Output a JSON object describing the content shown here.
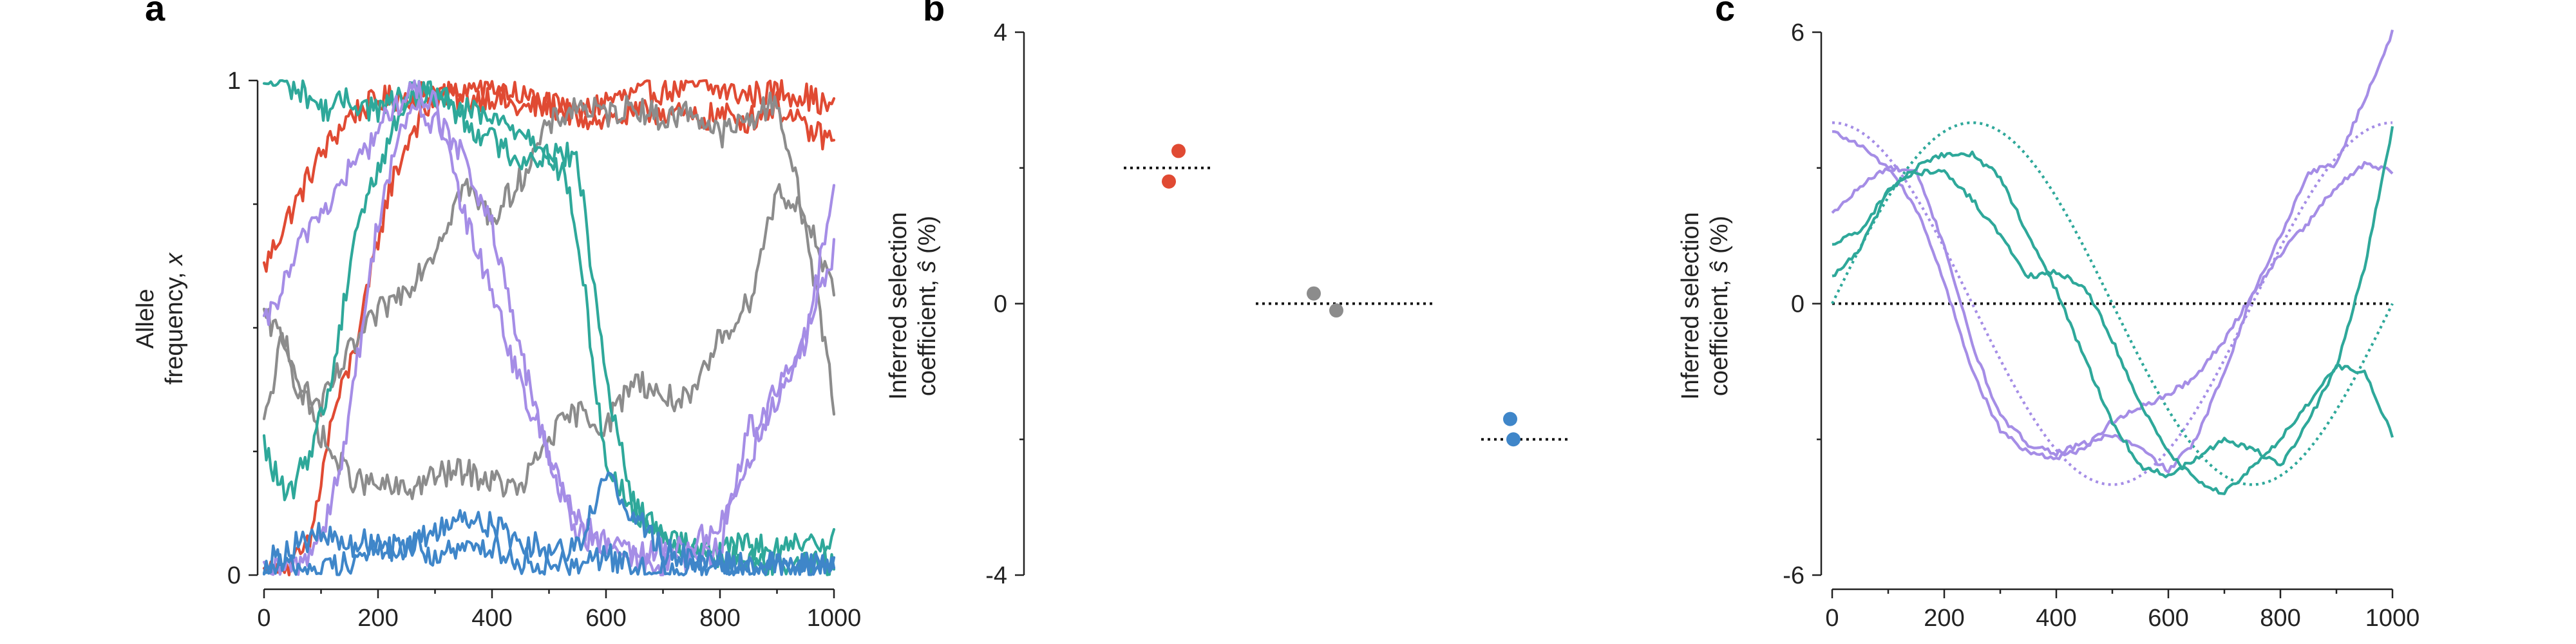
{
  "figure": {
    "panels": {
      "a": {
        "letter": "a",
        "ylabel_line1": "Allele",
        "ylabel_line2": "frequency, ",
        "ylabel_var": "x"
      },
      "b": {
        "letter": "b",
        "ylabel_line1": "Inferred selection",
        "ylabel_line2": "coefficient, ",
        "ylabel_var": "ŝ",
        "ylabel_unit": " (%)"
      },
      "c": {
        "letter": "c",
        "ylabel_line1": "Inferred selection",
        "ylabel_line2": "coefficient, ",
        "ylabel_var": "ŝ",
        "ylabel_unit": " (%)"
      }
    }
  },
  "chart_data": [
    {
      "panel": "a",
      "type": "line",
      "xlabel": "",
      "ylabel": "Allele frequency, x",
      "xlim": [
        0,
        1000
      ],
      "ylim": [
        0,
        1
      ],
      "xticks": [
        "0",
        "200",
        "400",
        "600",
        "800",
        "1000"
      ],
      "yticks": [
        "0",
        "1"
      ],
      "colors": {
        "red": "#e04a33",
        "gray": "#8c8c8c",
        "teal": "#2ea89a",
        "purple": "#a58de6",
        "blue": "#3f86c9"
      },
      "series": [
        {
          "color": "red",
          "x": [
            0,
            40,
            60,
            80,
            100,
            150,
            200,
            260,
            300,
            350,
            400,
            450,
            500,
            550,
            600,
            650,
            700,
            750,
            800,
            850,
            900,
            950,
            1000
          ],
          "y": [
            0.62,
            0.72,
            0.76,
            0.81,
            0.85,
            0.93,
            0.96,
            0.97,
            0.98,
            0.96,
            0.97,
            0.94,
            0.95,
            0.93,
            0.96,
            0.97,
            0.98,
            0.99,
            0.98,
            0.97,
            0.98,
            0.97,
            0.94
          ]
        },
        {
          "color": "red",
          "x": [
            0,
            40,
            80,
            120,
            150,
            180,
            200,
            220,
            240,
            260,
            300,
            350,
            400,
            450,
            500,
            550,
            600,
            650,
            700,
            750,
            800,
            850,
            900,
            950,
            1000
          ],
          "y": [
            0.0,
            0.01,
            0.06,
            0.32,
            0.42,
            0.56,
            0.68,
            0.78,
            0.84,
            0.9,
            0.96,
            0.98,
            0.99,
            0.97,
            0.95,
            0.93,
            0.92,
            0.93,
            0.94,
            0.92,
            0.93,
            0.92,
            0.95,
            0.9,
            0.88
          ]
        },
        {
          "color": "gray",
          "x": [
            0,
            30,
            60,
            100,
            150,
            200,
            250,
            300,
            350,
            400,
            450,
            500,
            550,
            600,
            650,
            700,
            750,
            800,
            850,
            900,
            950,
            1000
          ],
          "y": [
            0.3,
            0.47,
            0.38,
            0.34,
            0.45,
            0.53,
            0.58,
            0.66,
            0.79,
            0.72,
            0.8,
            0.91,
            0.95,
            0.93,
            0.95,
            0.92,
            0.94,
            0.89,
            0.92,
            0.96,
            0.71,
            0.35
          ]
        },
        {
          "color": "gray",
          "x": [
            0,
            40,
            80,
            120,
            160,
            200,
            250,
            300,
            350,
            400,
            450,
            500,
            550,
            600,
            650,
            700,
            750,
            800,
            850,
            900,
            950,
            1000
          ],
          "y": [
            0.52,
            0.47,
            0.33,
            0.24,
            0.19,
            0.18,
            0.17,
            0.2,
            0.21,
            0.19,
            0.17,
            0.28,
            0.33,
            0.3,
            0.4,
            0.36,
            0.35,
            0.48,
            0.55,
            0.78,
            0.73,
            0.56
          ]
        },
        {
          "color": "teal",
          "x": [
            0,
            40,
            80,
            100,
            150,
            200,
            250,
            300,
            350,
            400,
            450,
            500,
            550,
            600,
            650,
            700,
            750,
            800,
            850,
            900,
            950,
            1000
          ],
          "y": [
            1.0,
            0.99,
            0.97,
            0.94,
            0.96,
            0.94,
            0.97,
            0.97,
            0.94,
            0.92,
            0.9,
            0.86,
            0.84,
            0.4,
            0.12,
            0.09,
            0.05,
            0.04,
            0.03,
            0.02,
            0.02,
            0.03
          ]
        },
        {
          "color": "teal",
          "x": [
            0,
            40,
            80,
            120,
            160,
            200,
            240,
            280,
            320,
            360,
            400,
            450,
            500,
            530,
            560,
            600,
            650,
            700,
            750,
            800,
            850,
            900,
            950,
            1000
          ],
          "y": [
            0.26,
            0.15,
            0.25,
            0.4,
            0.7,
            0.82,
            0.94,
            0.99,
            0.96,
            0.91,
            0.88,
            0.84,
            0.85,
            0.8,
            0.6,
            0.22,
            0.14,
            0.08,
            0.06,
            0.05,
            0.06,
            0.05,
            0.06,
            0.08
          ]
        },
        {
          "color": "purple",
          "x": [
            0,
            40,
            80,
            120,
            150,
            180,
            210,
            240,
            270,
            300,
            350,
            400,
            450,
            500,
            550,
            600,
            650,
            700,
            750,
            800,
            850,
            900,
            950,
            1000
          ],
          "y": [
            0.5,
            0.6,
            0.71,
            0.76,
            0.82,
            0.86,
            0.92,
            0.96,
            0.98,
            0.95,
            0.73,
            0.58,
            0.38,
            0.25,
            0.11,
            0.06,
            0.04,
            0.05,
            0.06,
            0.1,
            0.23,
            0.38,
            0.46,
            0.8
          ]
        },
        {
          "color": "purple",
          "x": [
            0,
            60,
            100,
            140,
            170,
            200,
            230,
            260,
            290,
            320,
            360,
            400,
            450,
            500,
            550,
            600,
            650,
            700,
            750,
            800,
            850,
            900,
            950,
            1000
          ],
          "y": [
            0.0,
            0.02,
            0.08,
            0.25,
            0.48,
            0.72,
            0.86,
            0.95,
            0.92,
            0.9,
            0.82,
            0.7,
            0.45,
            0.23,
            0.09,
            0.05,
            0.03,
            0.02,
            0.03,
            0.05,
            0.3,
            0.34,
            0.48,
            0.66
          ]
        },
        {
          "color": "blue",
          "x": [
            0,
            50,
            100,
            150,
            200,
            250,
            300,
            350,
            400,
            450,
            500,
            550,
            600,
            650,
            700,
            750,
            800,
            850,
            900,
            950,
            1000
          ],
          "y": [
            0.02,
            0.06,
            0.08,
            0.06,
            0.07,
            0.05,
            0.09,
            0.12,
            0.1,
            0.07,
            0.05,
            0.06,
            0.2,
            0.12,
            0.05,
            0.03,
            0.02,
            0.03,
            0.02,
            0.02,
            0.02
          ]
        },
        {
          "color": "blue",
          "x": [
            0,
            50,
            100,
            150,
            200,
            250,
            300,
            350,
            400,
            450,
            500,
            550,
            600,
            650,
            700,
            750,
            800,
            850,
            900,
            950,
            1000
          ],
          "y": [
            0.01,
            0.02,
            0.01,
            0.03,
            0.05,
            0.06,
            0.04,
            0.05,
            0.06,
            0.03,
            0.02,
            0.03,
            0.04,
            0.01,
            0.01,
            0.02,
            0.03,
            0.01,
            0.02,
            0.02,
            0.01
          ]
        }
      ]
    },
    {
      "panel": "b",
      "type": "scatter",
      "xlabel": "",
      "ylabel": "Inferred selection coefficient, ŝ (%)",
      "ylim": [
        -4,
        4
      ],
      "yticks": [
        "4",
        "0",
        "-4"
      ],
      "groups": [
        {
          "color": "#e04a33",
          "true_value": 2.0,
          "points": [
            2.25,
            1.8
          ]
        },
        {
          "color": "#8c8c8c",
          "true_value": 0.0,
          "points": [
            0.15,
            -0.1
          ]
        },
        {
          "color": "#3f86c9",
          "true_value": -2.0,
          "points": [
            -1.7,
            -2.0
          ]
        }
      ]
    },
    {
      "panel": "c",
      "type": "line",
      "xlabel": "",
      "ylabel": "Inferred selection coefficient, ŝ (%)",
      "xlim": [
        0,
        1000
      ],
      "ylim": [
        -6,
        6
      ],
      "xticks": [
        "0",
        "200",
        "400",
        "600",
        "800",
        "1000"
      ],
      "yticks": [
        "6",
        "0",
        "-6"
      ],
      "true_series": [
        {
          "color": "#a58de6",
          "function": "4*cos(2*pi*x/1000)"
        },
        {
          "color": "#2ea89a",
          "function": "4*cos(2*pi*(x-250)/1000)"
        }
      ],
      "series": [
        {
          "color": "#a58de6",
          "x": [
            0,
            50,
            100,
            150,
            200,
            250,
            300,
            350,
            400,
            450,
            500,
            550,
            600,
            650,
            700,
            750,
            800,
            850,
            900,
            950,
            1000
          ],
          "y": [
            3.8,
            3.5,
            3.0,
            2.9,
            1.3,
            -0.9,
            -2.5,
            -3.1,
            -3.3,
            -3.1,
            -2.9,
            -3.2,
            -3.7,
            -3.0,
            -1.5,
            0.2,
            1.5,
            2.9,
            3.1,
            4.5,
            6.0
          ]
        },
        {
          "color": "#a58de6",
          "x": [
            0,
            50,
            100,
            150,
            200,
            250,
            300,
            350,
            400,
            450,
            500,
            550,
            600,
            650,
            700,
            750,
            800,
            850,
            900,
            950,
            1000
          ],
          "y": [
            2.0,
            2.6,
            3.0,
            2.1,
            0.5,
            -1.5,
            -2.8,
            -3.3,
            -3.4,
            -3.2,
            -2.6,
            -2.3,
            -2.0,
            -1.6,
            -0.8,
            0.2,
            1.1,
            1.8,
            2.6,
            3.1,
            2.9
          ]
        },
        {
          "color": "#2ea89a",
          "x": [
            0,
            50,
            100,
            150,
            200,
            250,
            300,
            350,
            400,
            450,
            500,
            550,
            600,
            650,
            700,
            750,
            800,
            850,
            900,
            950,
            1000
          ],
          "y": [
            1.3,
            1.6,
            2.5,
            3.0,
            3.3,
            3.3,
            2.8,
            1.5,
            0.3,
            -1.2,
            -2.6,
            -3.6,
            -3.8,
            -3.4,
            -3.0,
            -3.2,
            -3.6,
            -2.6,
            -1.4,
            0.8,
            3.9
          ]
        },
        {
          "color": "#2ea89a",
          "x": [
            0,
            50,
            100,
            150,
            200,
            250,
            300,
            350,
            400,
            450,
            500,
            550,
            600,
            650,
            700,
            750,
            800,
            850,
            900,
            950,
            1000
          ],
          "y": [
            0.6,
            1.2,
            2.5,
            2.9,
            2.9,
            2.3,
            1.5,
            0.6,
            0.7,
            0.4,
            -0.8,
            -2.2,
            -3.3,
            -3.9,
            -4.2,
            -3.6,
            -3.0,
            -2.2,
            -1.4,
            -1.5,
            -2.9
          ]
        }
      ]
    }
  ]
}
